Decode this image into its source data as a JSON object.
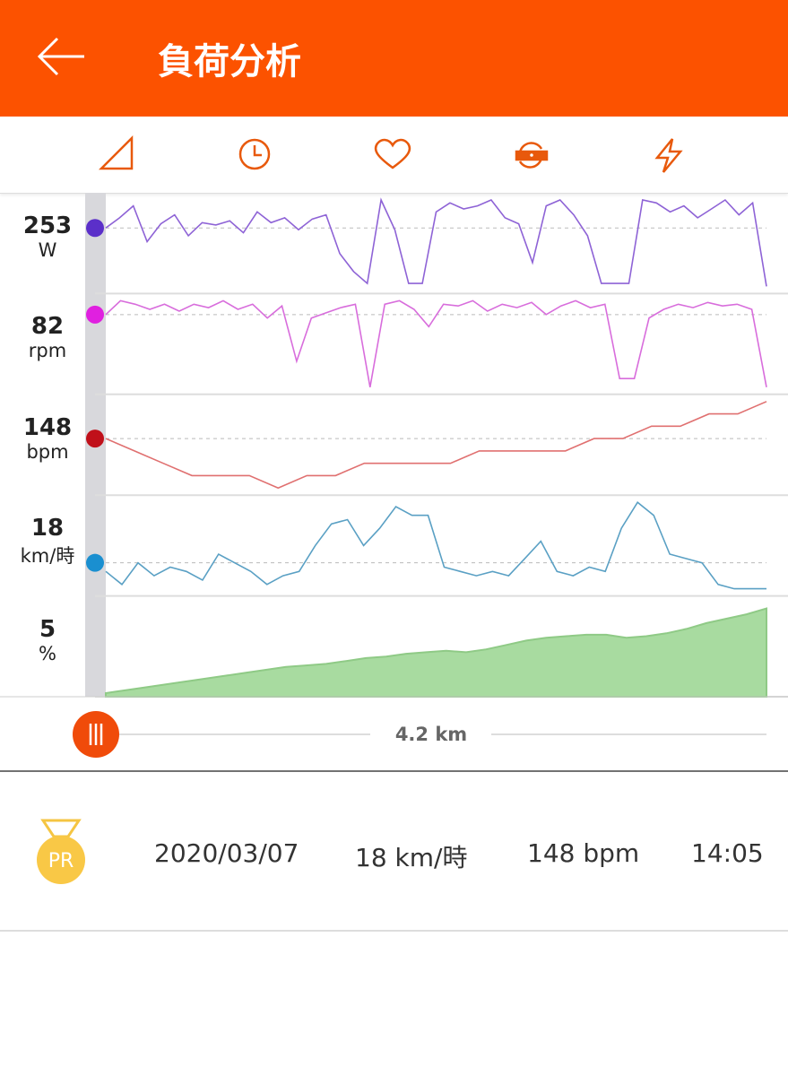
{
  "header": {
    "title": "負荷分析"
  },
  "charts": {
    "x_label": "4.2 km",
    "rows": [
      {
        "value": 253,
        "unit": "W",
        "color": "#8e63d6",
        "dot": "#5b2fc9",
        "series": [
          253,
          270,
          290,
          230,
          260,
          275,
          240,
          262,
          258,
          265,
          245,
          280,
          262,
          270,
          250,
          268,
          275,
          210,
          180,
          160,
          300,
          250,
          160,
          160,
          280,
          295,
          285,
          290,
          300,
          270,
          260,
          195,
          290,
          300,
          275,
          240,
          160,
          160,
          160,
          300,
          295,
          280,
          290,
          270,
          285,
          300,
          275,
          295,
          155
        ]
      },
      {
        "value": 82,
        "unit": "rpm",
        "color": "#d86ddc",
        "dot": "#e020e0",
        "series": [
          82,
          90,
          88,
          85,
          88,
          84,
          88,
          86,
          90,
          85,
          88,
          80,
          87,
          55,
          80,
          83,
          86,
          88,
          40,
          88,
          90,
          85,
          75,
          88,
          87,
          90,
          84,
          88,
          86,
          89,
          82,
          87,
          90,
          86,
          88,
          45,
          45,
          80,
          85,
          88,
          86,
          89,
          87,
          88,
          85,
          40
        ]
      },
      {
        "value": 148,
        "unit": "bpm",
        "color": "#e07070",
        "dot": "#c0101a",
        "series": [
          148,
          147,
          146,
          145,
          145,
          145,
          144,
          145,
          145,
          146,
          146,
          146,
          146,
          147,
          147,
          147,
          147,
          148,
          148,
          149,
          149,
          150,
          150,
          151
        ]
      },
      {
        "value": 18,
        "unit": "km/時",
        "color": "#5aa0c4",
        "dot": "#1a8fd0",
        "series": [
          16,
          13,
          18,
          15,
          17,
          16,
          14,
          20,
          18,
          16,
          13,
          15,
          16,
          22,
          27,
          28,
          22,
          26,
          31,
          29,
          29,
          17,
          16,
          15,
          16,
          15,
          19,
          23,
          16,
          15,
          17,
          16,
          26,
          32,
          29,
          20,
          19,
          18,
          13,
          12,
          12,
          12
        ]
      },
      {
        "value": 5,
        "unit": "%",
        "color": "#a8dba0",
        "series": [
          2,
          4,
          6,
          8,
          10,
          12,
          14,
          16,
          18,
          20,
          21,
          22,
          24,
          26,
          27,
          29,
          30,
          31,
          30,
          32,
          35,
          38,
          40,
          41,
          42,
          42,
          40,
          41,
          43,
          46,
          50,
          53,
          56,
          60
        ]
      }
    ]
  },
  "summary": {
    "badge": "PR",
    "date": "2020/03/07",
    "speed": "18 km/時",
    "heart_rate": "148 bpm",
    "time": "14:05"
  }
}
